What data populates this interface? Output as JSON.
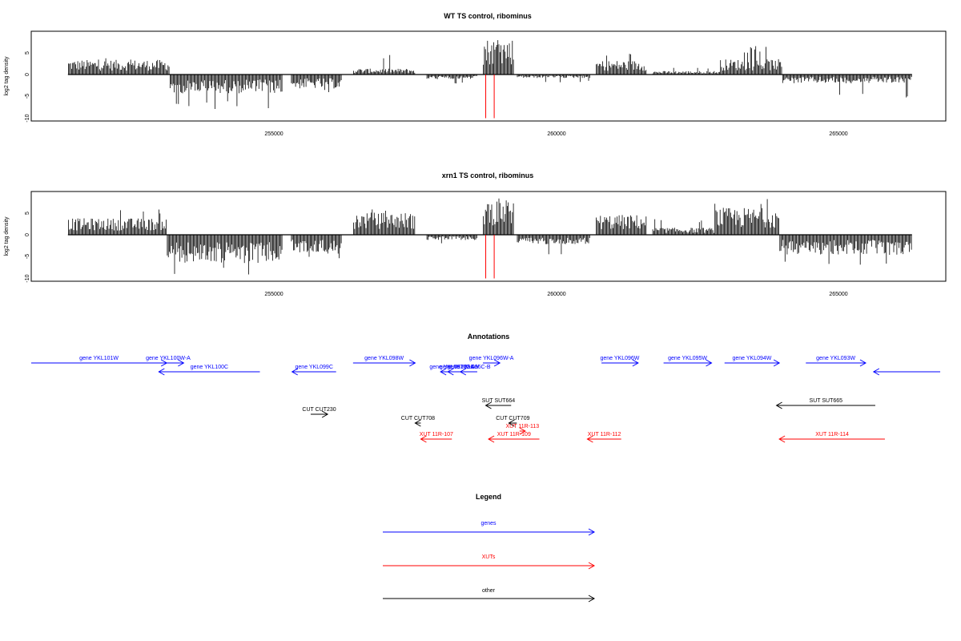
{
  "panels": [
    {
      "title": "WT TS control, ribominus",
      "ylabel": "log2 tag density",
      "yticks": [
        "-10",
        "-5",
        "0",
        "5"
      ],
      "xticks": [
        "255000",
        "260000",
        "265000"
      ]
    },
    {
      "title": "xrn1 TS control, ribominus",
      "ylabel": "log2 tag density",
      "yticks": [
        "-10",
        "-5",
        "0",
        "5"
      ],
      "xticks": [
        "255000",
        "260000",
        "265000"
      ]
    }
  ],
  "annotations_title": "Annotations",
  "legend_title": "Legend",
  "legend_items": [
    {
      "label": "genes",
      "color": "#0000ff"
    },
    {
      "label": "XUTs",
      "color": "#ff0000"
    },
    {
      "label": "other",
      "color": "#000000"
    }
  ],
  "colors": {
    "gene": "#0000ff",
    "xut": "#ff0000",
    "other": "#000000",
    "bars": "#000000",
    "highlight": "#ff0000"
  },
  "chart_data": [
    {
      "type": "bar",
      "title": "WT TS control, ribominus",
      "xlabel": "",
      "ylabel": "log2 tag density",
      "xlim": [
        250700,
        266400
      ],
      "ylim": [
        -10,
        10
      ],
      "xticks": [
        255000,
        260000,
        265000
      ],
      "yticks": [
        -10,
        -5,
        0,
        5
      ],
      "grid": false,
      "regions": [
        {
          "start": 251350,
          "end": 253150,
          "strand": "+",
          "level": 2.5,
          "peak": 4.2
        },
        {
          "start": 253150,
          "end": 255150,
          "strand": "-",
          "level": -3.2,
          "peak": -7.9
        },
        {
          "start": 255300,
          "end": 256200,
          "strand": "-",
          "level": -2.4,
          "peak": -4.2
        },
        {
          "start": 256400,
          "end": 257500,
          "strand": "+",
          "level": 1.0,
          "peak": 4.5
        },
        {
          "start": 257700,
          "end": 258600,
          "strand": "-",
          "level": -0.8,
          "peak": -2.3
        },
        {
          "start": 258700,
          "end": 259250,
          "strand": "+",
          "level": 6.2,
          "peak": 8.9
        },
        {
          "start": 259300,
          "end": 260600,
          "strand": "-",
          "level": -0.6,
          "peak": -1.8
        },
        {
          "start": 260700,
          "end": 261600,
          "strand": "+",
          "level": 2.4,
          "peak": 4.8
        },
        {
          "start": 261700,
          "end": 262900,
          "strand": "+",
          "level": 0.6,
          "peak": 1.7
        },
        {
          "start": 262900,
          "end": 264000,
          "strand": "+",
          "level": 2.6,
          "peak": 6.6
        },
        {
          "start": 264000,
          "end": 266300,
          "strand": "-",
          "level": -1.5,
          "peak": -5.6
        }
      ],
      "highlights": [
        {
          "x": 258750,
          "y": -10
        },
        {
          "x": 258900,
          "y": -10
        }
      ]
    },
    {
      "type": "bar",
      "title": "xrn1 TS control, ribominus",
      "xlabel": "",
      "ylabel": "log2 tag density",
      "xlim": [
        250700,
        266400
      ],
      "ylim": [
        -10,
        10
      ],
      "xticks": [
        255000,
        260000,
        265000
      ],
      "yticks": [
        -10,
        -5,
        0,
        5
      ],
      "grid": false,
      "regions": [
        {
          "start": 251350,
          "end": 253100,
          "strand": "+",
          "level": 2.8,
          "peak": 5.8
        },
        {
          "start": 253100,
          "end": 255150,
          "strand": "-",
          "level": -4.8,
          "peak": -10
        },
        {
          "start": 255300,
          "end": 256200,
          "strand": "-",
          "level": -3.2,
          "peak": -6.4
        },
        {
          "start": 256400,
          "end": 257500,
          "strand": "+",
          "level": 3.8,
          "peak": 7.2
        },
        {
          "start": 257700,
          "end": 258600,
          "strand": "-",
          "level": -0.9,
          "peak": -2.3
        },
        {
          "start": 258700,
          "end": 259250,
          "strand": "+",
          "level": 6.1,
          "peak": 8.9
        },
        {
          "start": 259300,
          "end": 260600,
          "strand": "-",
          "level": -1.6,
          "peak": -4.6
        },
        {
          "start": 260700,
          "end": 261600,
          "strand": "+",
          "level": 3.4,
          "peak": 7.0
        },
        {
          "start": 261700,
          "end": 262800,
          "strand": "+",
          "level": 1.2,
          "peak": 3.6
        },
        {
          "start": 262800,
          "end": 263950,
          "strand": "+",
          "level": 4.6,
          "peak": 9.1
        },
        {
          "start": 263950,
          "end": 266300,
          "strand": "-",
          "level": -3.4,
          "peak": -7.0
        }
      ],
      "highlights": [
        {
          "x": 258750,
          "y": -10
        },
        {
          "x": 258900,
          "y": -10
        }
      ]
    }
  ],
  "annotation_features": [
    {
      "label": "gene YKL101W",
      "type": "gene",
      "start": 250700,
      "end": 253100,
      "strand": "+"
    },
    {
      "label": "gene YKL100W-A",
      "type": "gene",
      "start": 252850,
      "end": 253400,
      "strand": "+"
    },
    {
      "label": "gene YKL100C",
      "type": "gene",
      "start": 252960,
      "end": 254750,
      "strand": "-"
    },
    {
      "label": "gene YKL099C",
      "type": "gene",
      "start": 255320,
      "end": 256100,
      "strand": "-"
    },
    {
      "label": "gene YKL098W",
      "type": "gene",
      "start": 256400,
      "end": 257500,
      "strand": "+"
    },
    {
      "label": "gene YKL097W-A",
      "type": "gene",
      "start": 257950,
      "end": 258350,
      "strand": "-"
    },
    {
      "label": "gene YKL096W",
      "type": "gene",
      "start": 258080,
      "end": 258480,
      "strand": "-"
    },
    {
      "label": "gene YKL096C-B",
      "type": "gene",
      "start": 258300,
      "end": 258600,
      "strand": "-"
    },
    {
      "label": "gene YKL096W-A",
      "type": "gene",
      "start": 258700,
      "end": 259000,
      "strand": "+"
    },
    {
      "label": "gene YKL096W",
      "type": "gene",
      "start": 260800,
      "end": 261450,
      "strand": "+"
    },
    {
      "label": "gene YKL095W",
      "type": "gene",
      "start": 261900,
      "end": 262750,
      "strand": "+"
    },
    {
      "label": "gene YKL094W",
      "type": "gene",
      "start": 262980,
      "end": 263950,
      "strand": "+"
    },
    {
      "label": "gene YKL093W",
      "type": "gene",
      "start": 264420,
      "end": 265480,
      "strand": "+"
    },
    {
      "label": "",
      "type": "gene",
      "start": 265620,
      "end": 266800,
      "strand": "-"
    },
    {
      "label": "SUT SUT664",
      "type": "other",
      "start": 258750,
      "end": 259200,
      "strand": "-"
    },
    {
      "label": "SUT SUT665",
      "type": "other",
      "start": 263900,
      "end": 265650,
      "strand": "-"
    },
    {
      "label": "CUT CUT230",
      "type": "other",
      "start": 255650,
      "end": 255950,
      "strand": "+"
    },
    {
      "label": "CUT CUT708",
      "type": "other",
      "start": 257500,
      "end": 257600,
      "strand": "-"
    },
    {
      "label": "CUT CUT709",
      "type": "other",
      "start": 259160,
      "end": 259300,
      "strand": "-"
    },
    {
      "label": "XUT 11R-113",
      "type": "xut",
      "start": 259350,
      "end": 259450,
      "strand": "+"
    },
    {
      "label": "XUT 11R-107",
      "type": "xut",
      "start": 257600,
      "end": 258150,
      "strand": "-"
    },
    {
      "label": "XUT 11R-109",
      "type": "xut",
      "start": 258800,
      "end": 259700,
      "strand": "-"
    },
    {
      "label": "XUT 11R-112",
      "type": "xut",
      "start": 260550,
      "end": 261150,
      "strand": "-"
    },
    {
      "label": "XUT 11R-114",
      "type": "xut",
      "start": 263950,
      "end": 265820,
      "strand": "-"
    }
  ]
}
